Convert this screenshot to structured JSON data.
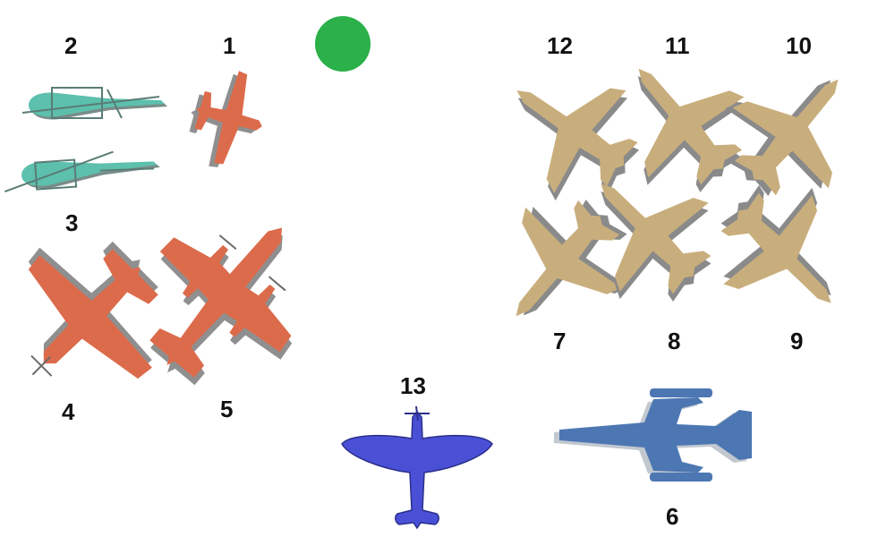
{
  "colors": {
    "teal": "#5cc0ad",
    "teal_shadow": "#7a8c88",
    "orange": "#dc6b4b",
    "orange_shadow": "#8f8f8f",
    "tan": "#c9ae7d",
    "tan_shadow": "#8a8a8a",
    "steel": "#4d77b3",
    "steel_shadow": "#9aa4b0",
    "blue": "#4a50d6",
    "marker": "#2bb04a"
  },
  "markers": [
    {
      "name": "green-dot",
      "shape": "circle"
    }
  ],
  "aircraft": [
    {
      "id": "1",
      "label": "1",
      "color": "orange",
      "icon": "monoplane-icon"
    },
    {
      "id": "2",
      "label": "2",
      "color": "teal",
      "icon": "helicopter-icon"
    },
    {
      "id": "3",
      "label": "3",
      "color": "teal",
      "icon": "helicopter-icon"
    },
    {
      "id": "4",
      "label": "4",
      "color": "orange",
      "icon": "propeller-plane-icon"
    },
    {
      "id": "5",
      "label": "5",
      "color": "orange",
      "icon": "twin-engine-plane-icon"
    },
    {
      "id": "6",
      "label": "6",
      "color": "steel",
      "icon": "jet-fighter-icon"
    },
    {
      "id": "7",
      "label": "7",
      "color": "tan",
      "icon": "jet-icon"
    },
    {
      "id": "8",
      "label": "8",
      "color": "tan",
      "icon": "jet-icon"
    },
    {
      "id": "9",
      "label": "9",
      "color": "tan",
      "icon": "jet-icon"
    },
    {
      "id": "10",
      "label": "10",
      "color": "tan",
      "icon": "jet-icon"
    },
    {
      "id": "11",
      "label": "11",
      "color": "tan",
      "icon": "jet-icon"
    },
    {
      "id": "12",
      "label": "12",
      "color": "tan",
      "icon": "jet-icon"
    },
    {
      "id": "13",
      "label": "13",
      "color": "blue",
      "icon": "spitfire-icon"
    }
  ]
}
